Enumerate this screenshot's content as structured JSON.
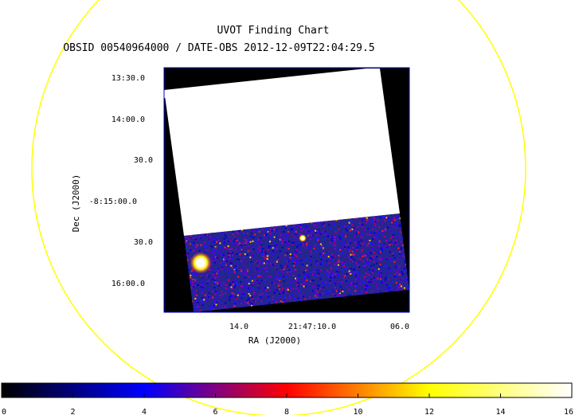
{
  "chart_data": {
    "type": "heatmap",
    "title": "UVOT Finding Chart",
    "subtitle": "OBSID 00540964000 / DATE-OBS 2012-12-09T22:04:29.5",
    "xlabel": "RA (J2000)",
    "ylabel": "Dec (J2000)",
    "x_ticks": [
      "14.0",
      "21:47:10.0",
      "06.0"
    ],
    "y_ticks": [
      "13:30.0",
      "14:00.0",
      "30.0",
      "-8:15:00.0",
      "30.0",
      "16:00.0"
    ],
    "colorbar": {
      "min": 0,
      "max": 16,
      "ticks": [
        0,
        2,
        4,
        6,
        8,
        10,
        12,
        14,
        16
      ],
      "colors": [
        "#000000",
        "#0000ff",
        "#ff0000",
        "#ffff00",
        "#ffffff"
      ]
    },
    "overlay_circle_color": "#ffff00",
    "frame_color": "#0000cc",
    "saturated_region_color": "#ffffff",
    "background_noise_color": "#2a2aa0"
  }
}
